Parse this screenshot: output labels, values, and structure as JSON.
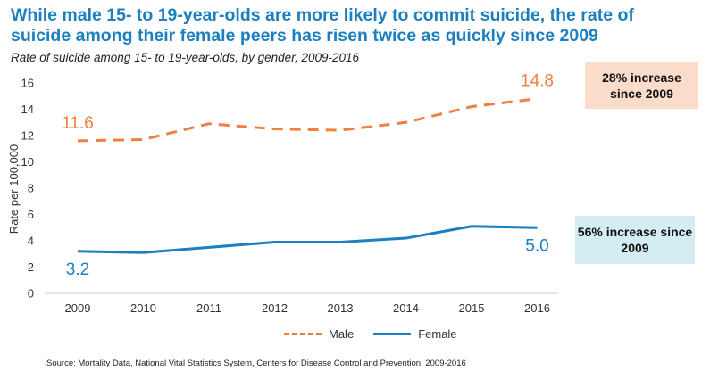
{
  "header": {
    "title": "While male 15- to 19-year-olds are more likely to commit suicide, the rate of suicide among their female peers has risen twice as quickly since 2009",
    "subtitle": "Rate of suicide among 15- to 19-year-olds, by gender, 2009-2016"
  },
  "colors": {
    "male": "#f08040",
    "female": "#1b7fc0",
    "title": "#1b7fc0"
  },
  "chart_data": {
    "type": "line",
    "x": [
      "2009",
      "2010",
      "2011",
      "2012",
      "2013",
      "2014",
      "2015",
      "2016"
    ],
    "ylabel": "Rate per 100,000",
    "ylim": [
      0,
      16
    ],
    "yticks": [
      "0",
      "2",
      "4",
      "6",
      "8",
      "10",
      "12",
      "14",
      "16"
    ],
    "grid": false,
    "series": [
      {
        "name": "Male",
        "style": "dashed",
        "values": [
          11.6,
          11.7,
          12.9,
          12.5,
          12.4,
          13.0,
          14.2,
          14.8
        ],
        "start_label": "11.6",
        "end_label": "14.8"
      },
      {
        "name": "Female",
        "style": "solid",
        "values": [
          3.2,
          3.1,
          3.5,
          3.9,
          3.9,
          4.2,
          5.1,
          5.0
        ],
        "start_label": "3.2",
        "end_label": "5.0"
      }
    ],
    "annotations": {
      "male": "28% increase since 2009",
      "female": "56% increase since 2009"
    },
    "legend_position": "bottom"
  },
  "footer": {
    "source": "Source: Mortality Data, National Vital Statistics System, Centers for Disease Control and Prevention, 2009-2016"
  }
}
